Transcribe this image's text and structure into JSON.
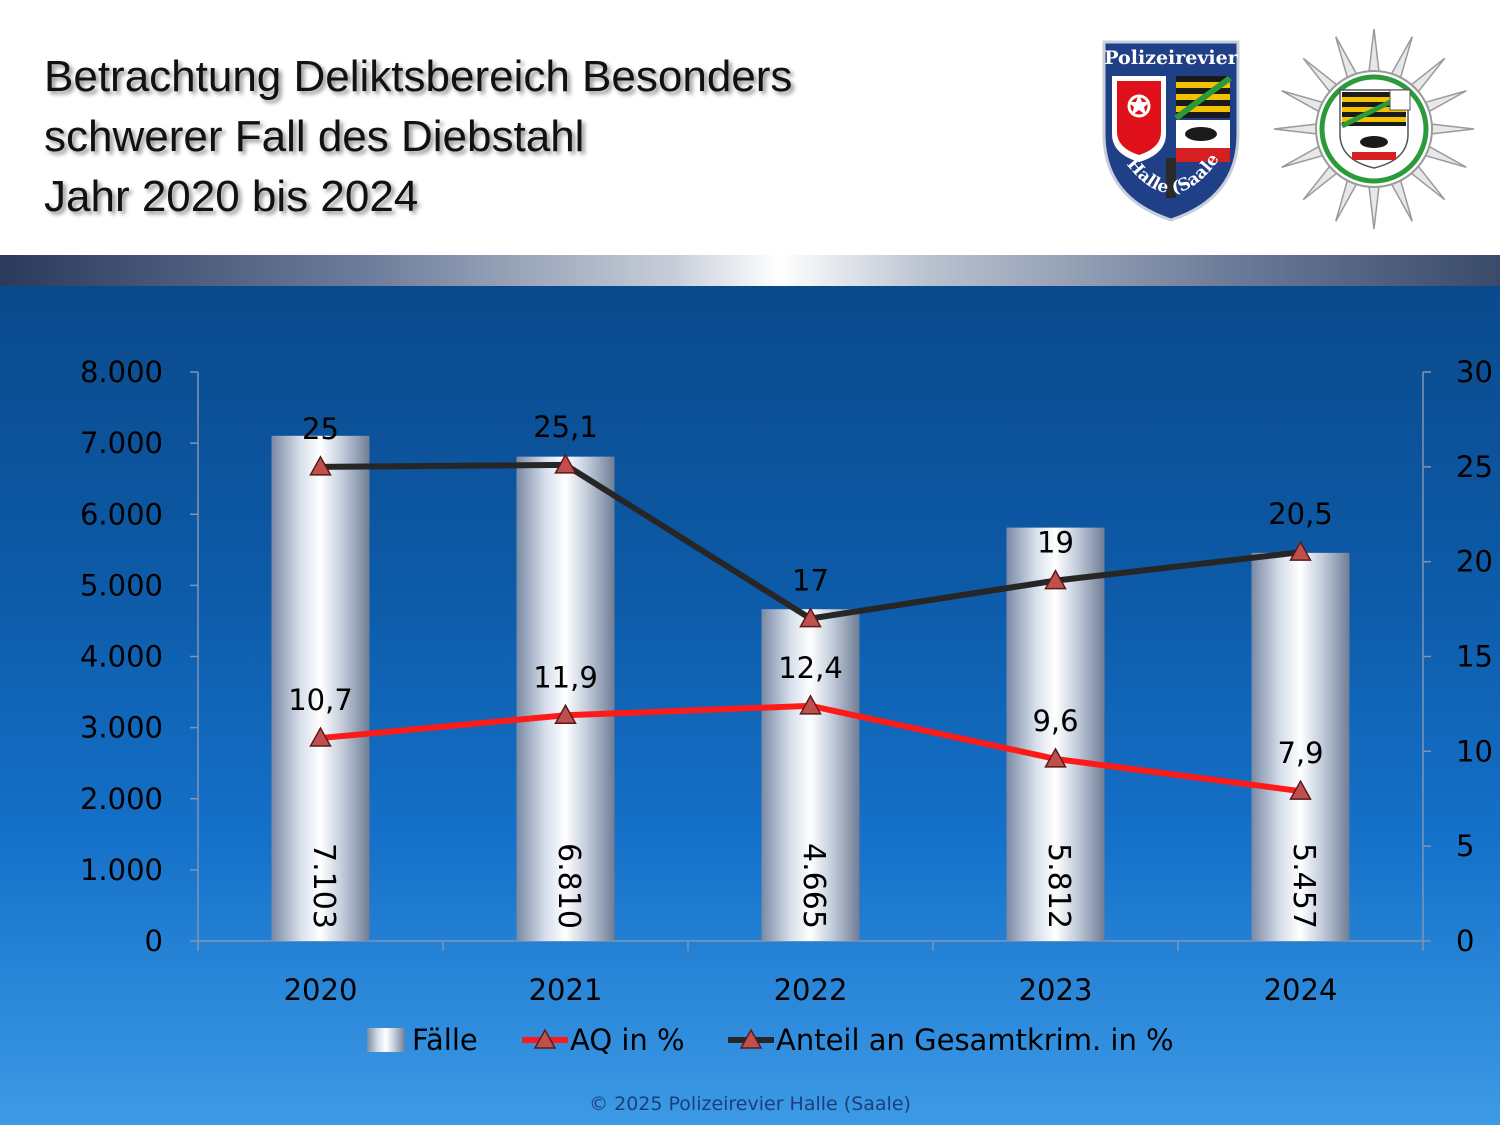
{
  "title": {
    "lines": [
      "Betrachtung Deliktsbereich Besonders",
      "schwerer Fall des Diebstahl",
      "Jahr 2020 bis 2024"
    ]
  },
  "logos": {
    "shield_text": "Polizeirevier",
    "shield_arc_text": "Halle (Saale)",
    "shield_icon": "polizeirevier-halle-shield-icon",
    "star_icon": "police-star-icon"
  },
  "footer": "© 2025 Polizeirevier Halle (Saale)",
  "colors": {
    "bar": "#b8c4d6",
    "aq_line": "#ff1a1a",
    "anteil_line": "#262626",
    "marker": "#c0504d"
  },
  "chart_data": {
    "type": "bar",
    "categories": [
      "2020",
      "2021",
      "2022",
      "2023",
      "2024"
    ],
    "series": [
      {
        "name": "Fälle",
        "type": "bar",
        "axis": "left",
        "values": [
          7103,
          6810,
          4665,
          5812,
          5457
        ],
        "labels": [
          "7.103",
          "6.810",
          "4.665",
          "5.812",
          "5.457"
        ]
      },
      {
        "name": "AQ in %",
        "type": "line",
        "axis": "right",
        "values": [
          10.7,
          11.9,
          12.4,
          9.6,
          7.9
        ],
        "labels": [
          "10,7",
          "11,9",
          "12,4",
          "9,6",
          "7,9"
        ]
      },
      {
        "name": "Anteil an Gesamtkrim. in %",
        "type": "line",
        "axis": "right",
        "values": [
          25,
          25.1,
          17,
          19,
          20.5
        ],
        "labels": [
          "25",
          "25,1",
          "17",
          "19",
          "20,5"
        ]
      }
    ],
    "y_left": {
      "range": [
        0,
        8000
      ],
      "ticks": [
        "0",
        "1.000",
        "2.000",
        "3.000",
        "4.000",
        "5.000",
        "6.000",
        "7.000",
        "8.000"
      ]
    },
    "y_right": {
      "range": [
        0,
        30
      ],
      "ticks": [
        "0",
        "5",
        "10",
        "15",
        "20",
        "25",
        "30"
      ]
    },
    "grid": false,
    "legend": "bottom"
  }
}
